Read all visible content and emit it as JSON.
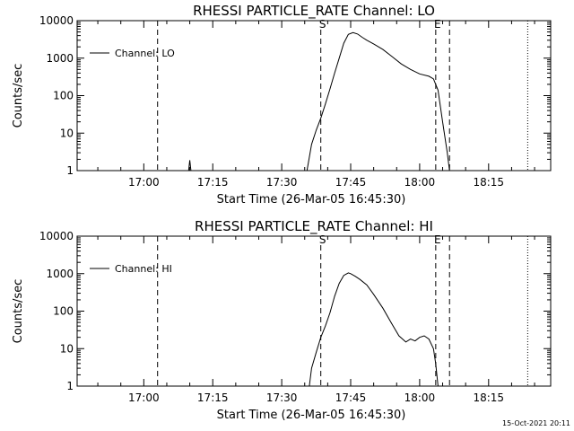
{
  "chart_data": [
    {
      "type": "line",
      "title": "RHESSI PARTICLE_RATE Channel: LO",
      "xlabel": "Start Time (26-Mar-05 16:45:30)",
      "ylabel": "Counts/sec",
      "yscale": "log",
      "ylim": [
        1,
        10000
      ],
      "x_ticks": [
        "17:00",
        "17:15",
        "17:30",
        "17:45",
        "18:00",
        "18:15"
      ],
      "y_ticks": [
        "1",
        "10",
        "100",
        "1000",
        "10000"
      ],
      "legend": "top-left",
      "series": [
        {
          "name": "Channel: LO",
          "x": [
            "17:09:45",
            "17:10:00",
            "17:10:15",
            "17:35:30",
            "17:36:30",
            "17:37:30",
            "17:38:30",
            "17:39:30",
            "17:40:30",
            "17:41:30",
            "17:42:30",
            "17:43:30",
            "17:44:30",
            "17:45:30",
            "17:46:30",
            "17:47:30",
            "17:48:30",
            "17:50:00",
            "17:52:00",
            "17:54:00",
            "17:56:00",
            "17:58:00",
            "18:00:00",
            "18:02:00",
            "18:03:00",
            "18:04:00",
            "18:05:00",
            "18:06:00",
            "18:06:30"
          ],
          "y": [
            1.0,
            1.9,
            1.0,
            1.0,
            5,
            12,
            25,
            60,
            150,
            400,
            1000,
            2500,
            4300,
            4800,
            4400,
            3600,
            3000,
            2400,
            1700,
            1100,
            700,
            500,
            380,
            330,
            280,
            140,
            20,
            3,
            1
          ]
        }
      ],
      "markers": [
        {
          "label": "S",
          "time": "17:38:30",
          "style": "dashed"
        },
        {
          "label": "E",
          "time": "18:03:30",
          "style": "dashed"
        }
      ],
      "vlines": [
        {
          "time": "17:03:00",
          "style": "dashed"
        },
        {
          "time": "18:06:30",
          "style": "dashed"
        },
        {
          "time": "18:23:30",
          "style": "dotted"
        }
      ]
    },
    {
      "type": "line",
      "title": "RHESSI PARTICLE_RATE Channel: HI",
      "xlabel": "Start Time (26-Mar-05 16:45:30)",
      "ylabel": "Counts/sec",
      "yscale": "log",
      "ylim": [
        1,
        10000
      ],
      "x_ticks": [
        "17:00",
        "17:15",
        "17:30",
        "17:45",
        "18:00",
        "18:15"
      ],
      "y_ticks": [
        "1",
        "10",
        "100",
        "1000",
        "10000"
      ],
      "legend": "top-left",
      "series": [
        {
          "name": "Channel: HI",
          "x": [
            "17:36:00",
            "17:36:30",
            "17:37:30",
            "17:38:30",
            "17:39:30",
            "17:40:30",
            "17:41:30",
            "17:42:30",
            "17:43:30",
            "17:44:30",
            "17:45:00",
            "17:46:00",
            "17:47:00",
            "17:48:30",
            "17:50:00",
            "17:52:00",
            "17:54:00",
            "17:55:30",
            "17:57:00",
            "17:58:00",
            "17:59:00",
            "18:00:00",
            "18:01:00",
            "18:02:00",
            "18:03:00",
            "18:03:30",
            "18:04:00"
          ],
          "y": [
            1.0,
            3,
            8,
            20,
            40,
            90,
            250,
            550,
            900,
            1050,
            1000,
            850,
            700,
            500,
            280,
            120,
            45,
            22,
            15,
            18,
            16,
            20,
            22,
            18,
            10,
            4,
            1
          ]
        }
      ],
      "markers": [
        {
          "label": "S",
          "time": "17:38:30",
          "style": "dashed"
        },
        {
          "label": "E",
          "time": "18:03:30",
          "style": "dashed"
        }
      ],
      "vlines": [
        {
          "time": "17:03:00",
          "style": "dashed"
        },
        {
          "time": "18:06:30",
          "style": "dashed"
        },
        {
          "time": "18:23:30",
          "style": "dotted"
        }
      ]
    }
  ],
  "footer": {
    "timestamp": "15-Oct-2021 20:11"
  }
}
